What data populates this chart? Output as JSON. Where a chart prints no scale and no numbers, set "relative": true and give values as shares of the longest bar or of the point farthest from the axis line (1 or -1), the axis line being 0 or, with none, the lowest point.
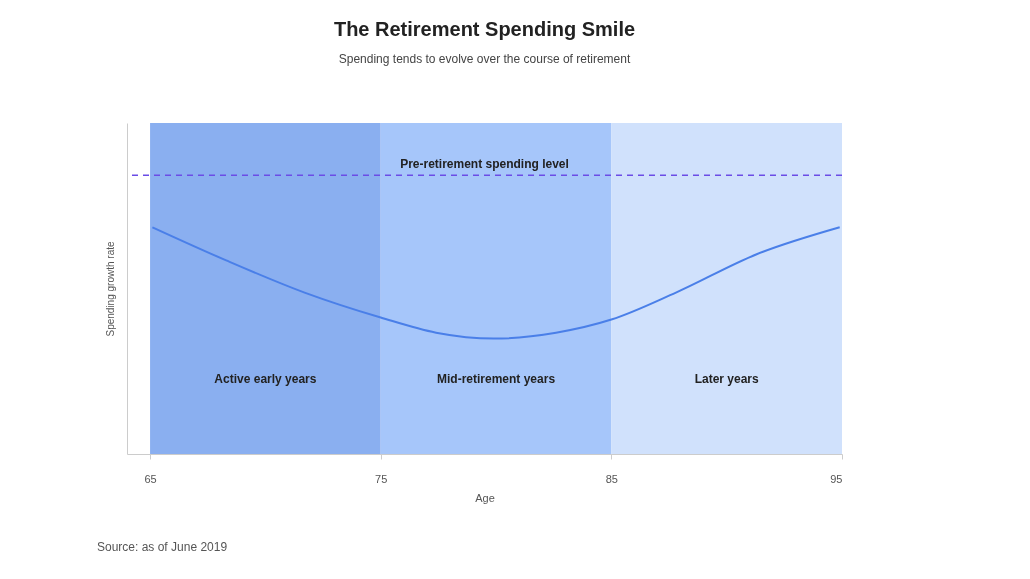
{
  "chart_data": {
    "type": "line",
    "title": "The Retirement Spending Smile",
    "subtitle": "Spending tends to evolve over the course of retirement",
    "xlabel": "Age",
    "ylabel": "Spending growth rate",
    "relative": true,
    "x": [
      65.1,
      68.3,
      71.7,
      75,
      77.4,
      79.9,
      82.6,
      85,
      87.8,
      91.3,
      94.9
    ],
    "series": [
      {
        "color": "#4a7fe8",
        "values": [
          1.0,
          0.854,
          0.712,
          0.602,
          0.535,
          0.509,
          0.535,
          0.593,
          0.712,
          0.881,
          1.0
        ]
      }
    ],
    "xlim": [
      64,
      95
    ],
    "xticks": [
      65,
      75,
      85,
      95
    ],
    "bands": [
      {
        "axis": "x",
        "from": 65,
        "to": 75,
        "label": "Active early years",
        "color": "#8aaff0"
      },
      {
        "axis": "x",
        "from": 75,
        "to": 85,
        "label": "Mid-retirement years",
        "color": "#a6c6fa"
      },
      {
        "axis": "x",
        "from": 85,
        "to": 95,
        "label": "Later years",
        "color": "#d0e1fc"
      }
    ],
    "ref_lines": [
      {
        "axis": "y",
        "value": 1.23,
        "label": "Pre-retirement spending level",
        "color": "#6b4ce6",
        "line_style": "dashed"
      }
    ],
    "annotations": [
      "Source: as of June 2019"
    ],
    "grid": false
  }
}
